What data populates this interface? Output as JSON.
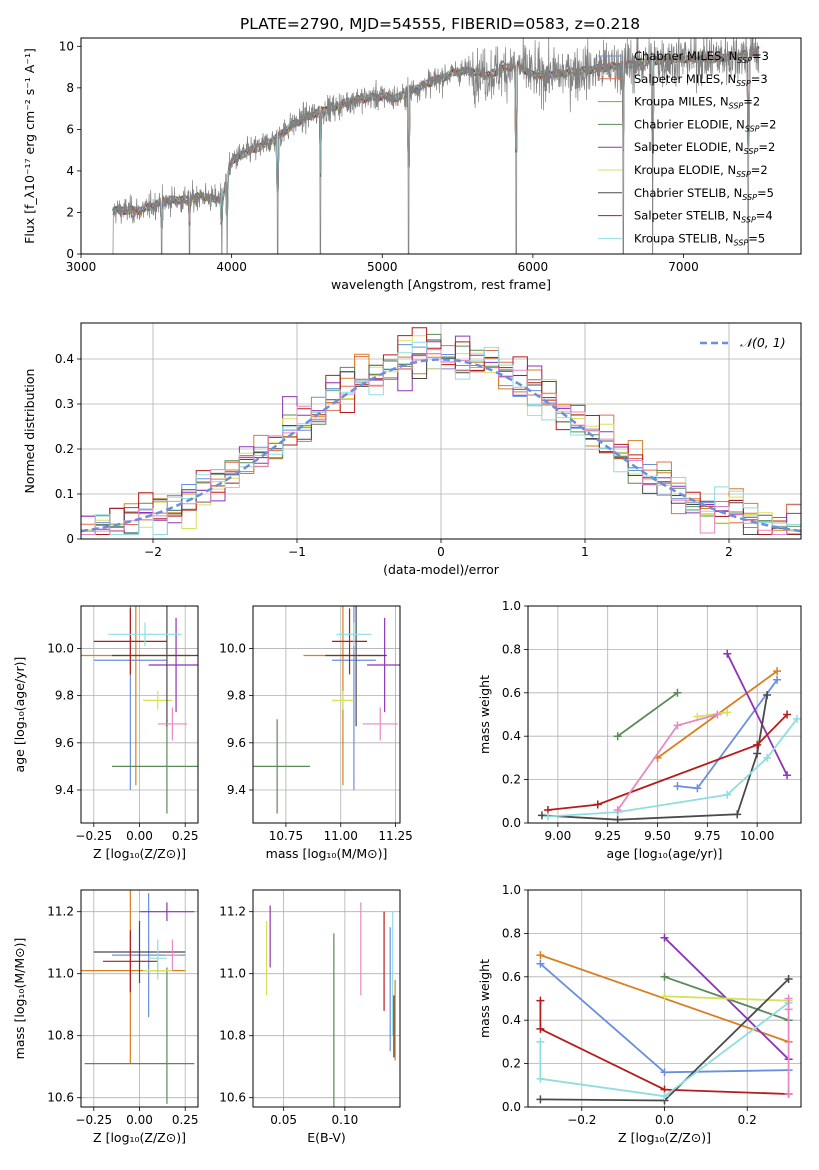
{
  "figure_title": "PLATE=2790, MJD=54555, FIBERID=0583, z=0.218",
  "colors": {
    "Chabrier MILES": "#6a8fdd",
    "Salpeter MILES": "#e36f4d",
    "Kroupa MILES": "#d97f20",
    "Chabrier ELODIE": "#5a8a5a",
    "Salpeter ELODIE": "#8e35b6",
    "Kroupa ELODIE": "#d7e25a",
    "Chabrier STELIB": "#4a4a4a",
    "Salpeter STELIB": "#b51c1c",
    "Kroupa STELIB": "#8edee0",
    "data": "#808080",
    "gaussian": "#6a8fdd",
    "extra_pink": "#e48ac4"
  },
  "chart_data": [
    {
      "id": "spectrum",
      "type": "line",
      "title": "",
      "xlabel": "wavelength [Angstrom, rest frame]",
      "ylabel": "Flux [f_λ10⁻¹⁷ erg cm⁻² s⁻¹ A⁻¹]",
      "xlim": [
        3000,
        7780
      ],
      "ylim": [
        0,
        10.4
      ],
      "xticks": [
        3000,
        4000,
        5000,
        6000,
        7000
      ],
      "yticks": [
        0,
        2,
        4,
        6,
        8,
        10
      ],
      "legend_position": "top-right",
      "legend": [
        {
          "model": "Chabrier MILES",
          "text": "Chabrier MILES, N",
          "n": "=3"
        },
        {
          "model": "Salpeter MILES",
          "text": "Salpeter MILES, N",
          "n": "=3"
        },
        {
          "model": "Kroupa MILES",
          "text": "Kroupa MILES, N",
          "n": "=2"
        },
        {
          "model": "Chabrier ELODIE",
          "text": "Chabrier ELODIE, N",
          "n": "=2"
        },
        {
          "model": "Salpeter ELODIE",
          "text": "Salpeter ELODIE, N",
          "n": "=2"
        },
        {
          "model": "Kroupa ELODIE",
          "text": "Kroupa ELODIE, N",
          "n": "=2"
        },
        {
          "model": "Chabrier STELIB",
          "text": "Chabrier STELIB, N",
          "n": "=5"
        },
        {
          "model": "Salpeter STELIB",
          "text": "Salpeter STELIB, N",
          "n": "=4"
        },
        {
          "model": "Kroupa STELIB",
          "text": "Kroupa STELIB, N",
          "n": "=5"
        }
      ],
      "legend_subscript": "SSP",
      "continuum": {
        "x": [
          3210,
          3400,
          3500,
          3600,
          3700,
          3800,
          3900,
          3950,
          4000,
          4100,
          4200,
          4300,
          4400,
          4500,
          4600,
          4700,
          4800,
          4900,
          5000,
          5100,
          5200,
          5300,
          5400,
          5500,
          5600,
          5700,
          5800,
          5900,
          6000,
          6200,
          6400,
          6600,
          6800,
          7000,
          7200,
          7400,
          7500
        ],
        "y": [
          2.1,
          2.1,
          2.4,
          2.6,
          2.6,
          2.8,
          2.6,
          3.0,
          4.5,
          4.9,
          5.2,
          5.6,
          6.2,
          6.6,
          6.9,
          7.1,
          7.4,
          7.5,
          7.6,
          7.5,
          7.9,
          8.2,
          8.5,
          8.8,
          8.8,
          8.6,
          8.9,
          9.1,
          8.6,
          8.7,
          8.9,
          9.1,
          9.3,
          9.4,
          9.4,
          9.6,
          9.8
        ]
      },
      "data_extent": [
        3210,
        7500
      ],
      "strong_absorptions": [
        3535,
        3720,
        3935,
        3970,
        4305,
        4590,
        5175,
        5890,
        6600,
        6795,
        7430
      ]
    },
    {
      "id": "residuals",
      "type": "line",
      "title": "",
      "xlabel": "(data-model)/error",
      "ylabel": "Normed distribution",
      "xlim": [
        -2.5,
        2.5
      ],
      "ylim": [
        0,
        0.48
      ],
      "xticks": [
        -2,
        -1,
        0,
        1,
        2
      ],
      "yticks": [
        0,
        0.1,
        0.2,
        0.3,
        0.4
      ],
      "grid": true,
      "legend_position": "top-right",
      "legend": [
        {
          "text": "𝒩(0, 1)",
          "style": "dashed"
        }
      ],
      "bins": 50,
      "series_note": "one step histogram per model; the dashed curve is the standard normal pdf"
    },
    {
      "id": "age-z",
      "type": "scatter",
      "title": "",
      "xlabel": "Z [log₁₀(Z/Z⊙)]",
      "ylabel": "age  [log₁₀(age/yr)]",
      "xlim": [
        -0.32,
        0.32
      ],
      "ylim": [
        9.26,
        10.18
      ],
      "xticks": [
        -0.25,
        0,
        0.25
      ],
      "xticklabels": [
        "−0.25",
        "0.00",
        "0.25"
      ],
      "yticks": [
        9.4,
        9.6,
        9.8,
        10.0
      ],
      "yticklabels": [
        "9.4",
        "9.6",
        "9.8",
        "10.0"
      ],
      "grid": true,
      "errorbars": [
        {
          "model": "Chabrier MILES",
          "x": -0.05,
          "xerr": 0.2,
          "y": 9.95,
          "yerr": 0.55
        },
        {
          "model": "Kroupa MILES",
          "x": -0.02,
          "xerr": 0.3,
          "y": 9.97,
          "yerr": 0.55
        },
        {
          "model": "Chabrier ELODIE",
          "x": 0.15,
          "xerr": 0.3,
          "y": 9.5,
          "yerr": 0.2
        },
        {
          "model": "Salpeter ELODIE",
          "x": 0.2,
          "xerr": 0.15,
          "y": 9.93,
          "yerr": 0.2
        },
        {
          "model": "Kroupa ELODIE",
          "x": 0.1,
          "xerr": 0.08,
          "y": 9.78,
          "yerr": 0.04
        },
        {
          "model": "Chabrier STELIB",
          "x": 0.15,
          "xerr": 0.3,
          "y": 9.97,
          "yerr": 0.3
        },
        {
          "model": "Salpeter STELIB",
          "x": -0.05,
          "xerr": 0.2,
          "y": 10.03,
          "yerr": 0.14
        },
        {
          "model": "Kroupa STELIB",
          "x": 0.03,
          "xerr": 0.2,
          "y": 10.06,
          "yerr": 0.05
        },
        {
          "model": "extra_pink",
          "x": 0.18,
          "xerr": 0.08,
          "y": 9.68,
          "yerr": 0.07
        }
      ]
    },
    {
      "id": "age-mass",
      "type": "scatter",
      "title": "",
      "xlabel": "mass [log₁₀(M/M⊙)]",
      "ylabel": "",
      "xlim": [
        10.6,
        11.27
      ],
      "ylim": [
        9.26,
        10.18
      ],
      "xticks": [
        10.75,
        11.0,
        11.25
      ],
      "xticklabels": [
        "10.75",
        "11.00",
        "11.25"
      ],
      "yticks": [
        9.4,
        9.6,
        9.8,
        10.0
      ],
      "yticklabels": [
        "9.4",
        "9.6",
        "9.8",
        "10.0"
      ],
      "grid": true,
      "errorbars": [
        {
          "model": "Chabrier MILES",
          "x": 11.06,
          "xerr": 0.1,
          "y": 9.95,
          "yerr": 0.55
        },
        {
          "model": "Kroupa MILES",
          "x": 11.01,
          "xerr": 0.18,
          "y": 9.97,
          "yerr": 0.55
        },
        {
          "model": "Chabrier ELODIE",
          "x": 10.71,
          "xerr": 0.15,
          "y": 9.5,
          "yerr": 0.2
        },
        {
          "model": "Salpeter ELODIE",
          "x": 11.2,
          "xerr": 0.08,
          "y": 9.93,
          "yerr": 0.2
        },
        {
          "model": "Kroupa ELODIE",
          "x": 11.01,
          "xerr": 0.05,
          "y": 9.78,
          "yerr": 0.04
        },
        {
          "model": "Chabrier STELIB",
          "x": 11.07,
          "xerr": 0.14,
          "y": 9.97,
          "yerr": 0.3
        },
        {
          "model": "Salpeter STELIB",
          "x": 11.04,
          "xerr": 0.08,
          "y": 10.03,
          "yerr": 0.14
        },
        {
          "model": "Kroupa STELIB",
          "x": 11.06,
          "xerr": 0.08,
          "y": 10.06,
          "yerr": 0.05
        },
        {
          "model": "extra_pink",
          "x": 11.18,
          "xerr": 0.08,
          "y": 9.68,
          "yerr": 0.07
        }
      ]
    },
    {
      "id": "age-weight",
      "type": "line",
      "title": "",
      "xlabel": "age  [log₁₀(age/yr)]",
      "ylabel": "mass weight",
      "xlim": [
        8.85,
        10.22
      ],
      "ylim": [
        0,
        1.0
      ],
      "xticks": [
        9.0,
        9.25,
        9.5,
        9.75,
        10.0
      ],
      "xticklabels": [
        "9.00",
        "9.25",
        "9.50",
        "9.75",
        "10.00"
      ],
      "yticks": [
        0,
        0.2,
        0.4,
        0.6,
        0.8,
        1.0
      ],
      "yticklabels": [
        "0.0",
        "0.2",
        "0.4",
        "0.6",
        "0.8",
        "1.0"
      ],
      "grid": true,
      "series": [
        {
          "model": "Chabrier MILES",
          "x": [
            9.6,
            9.7,
            10.1
          ],
          "y": [
            0.17,
            0.16,
            0.66
          ]
        },
        {
          "model": "Kroupa MILES",
          "x": [
            9.5,
            10.1
          ],
          "y": [
            0.3,
            0.7
          ]
        },
        {
          "model": "Chabrier ELODIE",
          "x": [
            9.3,
            9.6
          ],
          "y": [
            0.4,
            0.6
          ]
        },
        {
          "model": "Salpeter ELODIE",
          "x": [
            9.85,
            10.15
          ],
          "y": [
            0.78,
            0.22
          ]
        },
        {
          "model": "Kroupa ELODIE",
          "x": [
            9.7,
            9.85
          ],
          "y": [
            0.49,
            0.51
          ]
        },
        {
          "model": "Chabrier STELIB",
          "x": [
            8.92,
            9.3,
            9.9,
            10.0,
            10.05
          ],
          "y": [
            0.035,
            0.015,
            0.04,
            0.32,
            0.59
          ]
        },
        {
          "model": "Salpeter STELIB",
          "x": [
            8.95,
            9.2,
            10.0,
            10.15
          ],
          "y": [
            0.06,
            0.085,
            0.36,
            0.5
          ]
        },
        {
          "model": "Kroupa STELIB",
          "x": [
            8.95,
            9.3,
            9.85,
            10.05,
            10.2
          ],
          "y": [
            0.03,
            0.05,
            0.13,
            0.3,
            0.48
          ]
        },
        {
          "model": "extra_pink",
          "x": [
            9.3,
            9.6,
            9.8
          ],
          "y": [
            0.06,
            0.45,
            0.5
          ]
        }
      ]
    },
    {
      "id": "mass-z",
      "type": "scatter",
      "title": "",
      "xlabel": "Z [log₁₀(Z/Z⊙)]",
      "ylabel": "mass [log₁₀(M/M⊙)]",
      "xlim": [
        -0.32,
        0.32
      ],
      "ylim": [
        10.57,
        11.27
      ],
      "xticks": [
        -0.25,
        0,
        0.25
      ],
      "xticklabels": [
        "−0.25",
        "0.00",
        "0.25"
      ],
      "yticks": [
        10.6,
        10.8,
        11.0,
        11.2
      ],
      "yticklabels": [
        "10.6",
        "10.8",
        "11.0",
        "11.2"
      ],
      "grid": true,
      "errorbars": [
        {
          "model": "Chabrier MILES",
          "x": 0.05,
          "xerr": 0.2,
          "y": 11.06,
          "yerr": 0.2
        },
        {
          "model": "Kroupa MILES",
          "x": -0.05,
          "xerr": 0.3,
          "y": 11.01,
          "yerr": 0.3
        },
        {
          "model": "Chabrier ELODIE",
          "x": 0.0,
          "xerr": 0.3,
          "y": 10.71,
          "yerr": 0.0
        },
        {
          "model": "Chabrier ELODIE",
          "x": 0.15,
          "xerr": 0.0,
          "y": 10.8,
          "yerr": 0.22
        },
        {
          "model": "Salpeter ELODIE",
          "x": 0.15,
          "xerr": 0.15,
          "y": 11.2,
          "yerr": 0.03
        },
        {
          "model": "Kroupa ELODIE",
          "x": 0.1,
          "xerr": 0.08,
          "y": 11.01,
          "yerr": 0.03
        },
        {
          "model": "Chabrier STELIB",
          "x": 0.0,
          "xerr": 0.25,
          "y": 11.07,
          "yerr": 0.1
        },
        {
          "model": "Salpeter STELIB",
          "x": -0.05,
          "xerr": 0.15,
          "y": 11.04,
          "yerr": 0.1
        },
        {
          "model": "Kroupa STELIB",
          "x": 0.1,
          "xerr": 0.05,
          "y": 11.05,
          "yerr": 0.06
        },
        {
          "model": "extra_pink",
          "x": 0.18,
          "xerr": 0.04,
          "y": 11.06,
          "yerr": 0.05
        }
      ]
    },
    {
      "id": "mass-ebv",
      "type": "scatter",
      "title": "",
      "xlabel": "E(B-V)",
      "ylabel": "",
      "xlim": [
        0.025,
        0.145
      ],
      "ylim": [
        10.57,
        11.27
      ],
      "xticks": [
        0.05,
        0.1
      ],
      "xticklabels": [
        "0.05",
        "0.10"
      ],
      "yticks": [
        10.6,
        10.8,
        11.0,
        11.2
      ],
      "yticklabels": [
        "10.6",
        "10.8",
        "11.0",
        "11.2"
      ],
      "grid": true,
      "errorbars": [
        {
          "model": "Kroupa ELODIE",
          "x": 0.036,
          "xerr": 0,
          "y": 11.05,
          "yerr": 0.12
        },
        {
          "model": "Salpeter ELODIE",
          "x": 0.039,
          "xerr": 0,
          "y": 11.12,
          "yerr": 0.1
        },
        {
          "model": "Chabrier ELODIE",
          "x": 0.091,
          "xerr": 0,
          "y": 10.78,
          "yerr": 0.35
        },
        {
          "model": "extra_pink",
          "x": 0.113,
          "xerr": 0,
          "y": 11.08,
          "yerr": 0.15
        },
        {
          "model": "Salpeter STELIB",
          "x": 0.132,
          "xerr": 0,
          "y": 11.04,
          "yerr": 0.16
        },
        {
          "model": "Chabrier MILES",
          "x": 0.137,
          "xerr": 0,
          "y": 10.95,
          "yerr": 0.2
        },
        {
          "model": "Kroupa STELIB",
          "x": 0.139,
          "xerr": 0,
          "y": 11.0,
          "yerr": 0.2
        },
        {
          "model": "Kroupa MILES",
          "x": 0.141,
          "xerr": 0,
          "y": 10.85,
          "yerr": 0.13
        },
        {
          "model": "Chabrier STELIB",
          "x": 0.14,
          "xerr": 0,
          "y": 10.83,
          "yerr": 0.1
        }
      ]
    },
    {
      "id": "z-weight",
      "type": "line",
      "title": "",
      "xlabel": "Z [log₁₀(Z/Z⊙)]",
      "ylabel": "mass weight",
      "xlim": [
        -0.33,
        0.33
      ],
      "ylim": [
        0,
        1.0
      ],
      "xticks": [
        -0.2,
        0,
        0.2
      ],
      "xticklabels": [
        "−0.2",
        "0.0",
        "0.2"
      ],
      "yticks": [
        0,
        0.2,
        0.4,
        0.6,
        0.8,
        1.0
      ],
      "yticklabels": [
        "0.0",
        "0.2",
        "0.4",
        "0.6",
        "0.8",
        "1.0"
      ],
      "grid": true,
      "series": [
        {
          "model": "Chabrier MILES",
          "x": [
            -0.3,
            0.0,
            0.3
          ],
          "y": [
            0.66,
            0.16,
            0.17
          ]
        },
        {
          "model": "Kroupa MILES",
          "x": [
            -0.3,
            0.3
          ],
          "y": [
            0.7,
            0.3
          ]
        },
        {
          "model": "Chabrier ELODIE",
          "x": [
            0.0,
            0.3
          ],
          "y": [
            0.6,
            0.4
          ]
        },
        {
          "model": "Salpeter ELODIE",
          "x": [
            0.0,
            0.3
          ],
          "y": [
            0.78,
            0.22
          ]
        },
        {
          "model": "Kroupa ELODIE",
          "x": [
            0.0,
            0.3
          ],
          "y": [
            0.51,
            0.49
          ]
        },
        {
          "model": "Chabrier STELIB",
          "x": [
            -0.3,
            0.0,
            0.3
          ],
          "y": [
            0.035,
            0.03,
            0.59
          ]
        },
        {
          "model": "Salpeter STELIB",
          "x": [
            -0.3,
            -0.3,
            0.0,
            0.3
          ],
          "y": [
            0.49,
            0.36,
            0.08,
            0.06
          ]
        },
        {
          "model": "Kroupa STELIB",
          "x": [
            -0.3,
            -0.3,
            0.0,
            0.3
          ],
          "y": [
            0.3,
            0.13,
            0.05,
            0.48
          ]
        },
        {
          "model": "extra_pink",
          "x": [
            0.3,
            0.3,
            0.3
          ],
          "y": [
            0.06,
            0.45,
            0.5
          ]
        }
      ]
    }
  ]
}
